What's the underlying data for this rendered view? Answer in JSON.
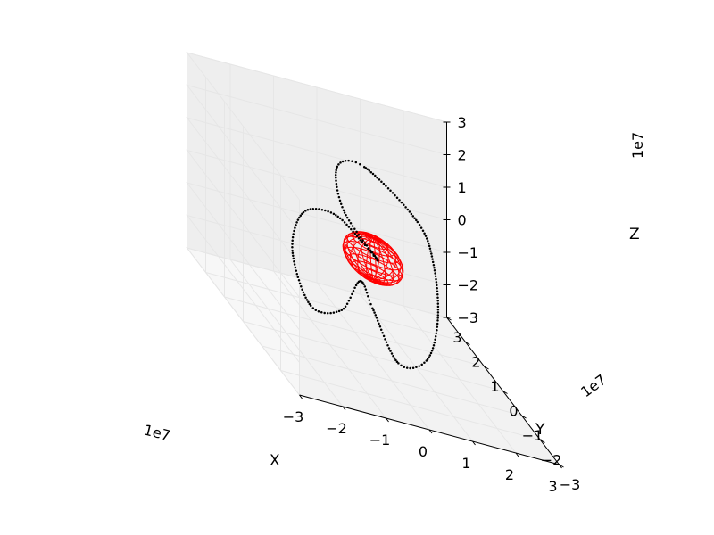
{
  "chart_data": {
    "type": "scatter",
    "projection": "3d",
    "xlabel": "X",
    "ylabel": "Y",
    "zlabel": "Z",
    "xlim": [
      -3,
      3
    ],
    "ylim": [
      -3,
      3
    ],
    "zlim": [
      -3,
      3
    ],
    "scale_multiplier": "1e7",
    "ticks": [
      "−3",
      "−2",
      "−1",
      "0",
      "1",
      "2",
      "3"
    ],
    "grid": true,
    "series": [
      {
        "kind": "points",
        "color": "#000000",
        "description_points": [
          [
            0.1,
            0.0,
            0.0
          ],
          [
            -0.4,
            0.65,
            0.85
          ],
          [
            -0.3,
            1.22,
            1.8
          ],
          [
            0.3,
            1.16,
            2.05
          ],
          [
            1.2,
            0.4,
            1.25
          ],
          [
            1.4,
            0.0,
            0.3
          ],
          [
            1.3,
            -0.45,
            -1.1
          ],
          [
            0.8,
            -1.0,
            -2.1
          ],
          [
            0.0,
            -1.35,
            -2.2
          ],
          [
            -0.25,
            -0.55,
            -1.2
          ],
          [
            -0.3,
            0.0,
            -0.8
          ],
          [
            -0.9,
            -0.4,
            -1.6
          ],
          [
            -1.7,
            -0.6,
            -1.6
          ],
          [
            -1.95,
            -0.2,
            -0.3
          ],
          [
            -1.5,
            0.25,
            0.7
          ],
          [
            -0.8,
            0.25,
            0.9
          ],
          [
            -0.2,
            0.12,
            0.35
          ],
          [
            0.1,
            0.0,
            0.0
          ]
        ]
      },
      {
        "kind": "wireframe_sphere",
        "color": "#ff0000",
        "center": [
          0,
          0,
          0
        ],
        "radius": 0.64
      }
    ]
  }
}
